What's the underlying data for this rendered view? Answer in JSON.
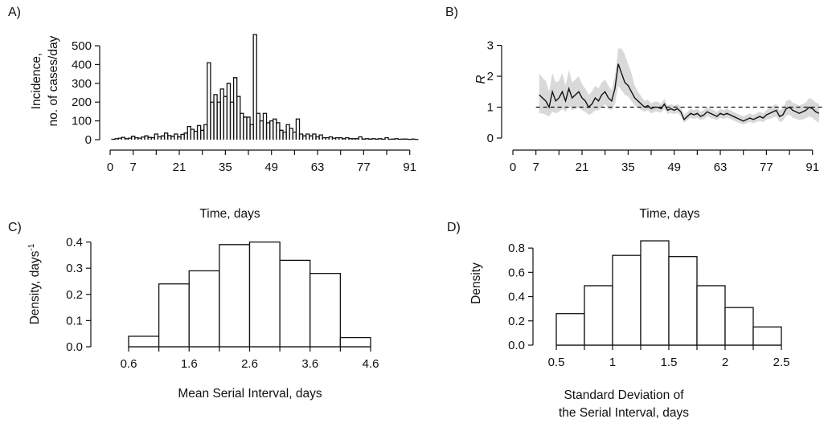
{
  "chart_data": [
    {
      "panel": "A)",
      "type": "bar",
      "xlabel": "Time, days",
      "ylabel_line1": "Incidence,",
      "ylabel_line2": "no. of cases/day",
      "xlim": [
        0,
        94
      ],
      "ylim": [
        0,
        560
      ],
      "xticks": [
        0,
        7,
        21,
        35,
        49,
        63,
        77,
        91
      ],
      "xminor": [
        14,
        28,
        42,
        56,
        70,
        84
      ],
      "yticks": [
        0,
        100,
        200,
        300,
        400,
        500
      ],
      "x": [
        1,
        2,
        3,
        4,
        5,
        6,
        7,
        8,
        9,
        10,
        11,
        12,
        13,
        14,
        15,
        16,
        17,
        18,
        19,
        20,
        21,
        22,
        23,
        24,
        25,
        26,
        27,
        28,
        29,
        30,
        31,
        32,
        33,
        34,
        35,
        36,
        37,
        38,
        39,
        40,
        41,
        42,
        43,
        44,
        45,
        46,
        47,
        48,
        49,
        50,
        51,
        52,
        53,
        54,
        55,
        56,
        57,
        58,
        59,
        60,
        61,
        62,
        63,
        64,
        65,
        66,
        67,
        68,
        69,
        70,
        71,
        72,
        73,
        74,
        75,
        76,
        77,
        78,
        79,
        80,
        81,
        82,
        83,
        84,
        85,
        86,
        87,
        88,
        89,
        90,
        91,
        92,
        93
      ],
      "values": [
        2,
        5,
        8,
        12,
        5,
        8,
        18,
        10,
        8,
        14,
        20,
        12,
        10,
        30,
        15,
        20,
        35,
        22,
        18,
        30,
        15,
        28,
        35,
        70,
        55,
        45,
        75,
        50,
        80,
        410,
        200,
        240,
        200,
        270,
        230,
        300,
        200,
        330,
        230,
        140,
        120,
        120,
        80,
        560,
        140,
        100,
        140,
        90,
        100,
        110,
        90,
        50,
        40,
        80,
        60,
        40,
        110,
        30,
        20,
        30,
        20,
        30,
        15,
        25,
        10,
        10,
        15,
        8,
        10,
        10,
        5,
        10,
        5,
        5,
        5,
        15,
        3,
        5,
        3,
        5,
        3,
        5,
        2,
        10,
        2,
        3,
        5,
        2,
        3,
        3,
        1,
        3,
        1
      ]
    },
    {
      "panel": "B)",
      "type": "line",
      "xlabel": "Time, days",
      "ylabel": "R",
      "xlim": [
        0,
        94
      ],
      "ylim": [
        0,
        3.3
      ],
      "xticks": [
        0,
        7,
        21,
        35,
        49,
        63,
        77,
        91
      ],
      "xminor": [
        14,
        28,
        42,
        56,
        70,
        84
      ],
      "yticks": [
        0,
        1,
        2,
        3
      ],
      "reference_line": 1,
      "x": [
        8,
        9,
        10,
        11,
        12,
        13,
        14,
        15,
        16,
        17,
        18,
        19,
        20,
        21,
        22,
        23,
        24,
        25,
        26,
        27,
        28,
        29,
        30,
        31,
        32,
        33,
        34,
        35,
        36,
        37,
        38,
        39,
        40,
        41,
        42,
        43,
        44,
        45,
        46,
        47,
        48,
        49,
        50,
        51,
        52,
        53,
        54,
        55,
        56,
        57,
        58,
        59,
        60,
        61,
        62,
        63,
        64,
        65,
        66,
        67,
        68,
        69,
        70,
        71,
        72,
        73,
        74,
        75,
        76,
        77,
        78,
        79,
        80,
        81,
        82,
        83,
        84,
        85,
        86,
        87,
        88,
        89,
        90,
        91,
        92,
        93
      ],
      "values": [
        1.4,
        1.3,
        1.2,
        1.0,
        1.5,
        1.2,
        1.3,
        1.5,
        1.2,
        1.6,
        1.3,
        1.4,
        1.5,
        1.3,
        1.2,
        1.0,
        1.1,
        1.3,
        1.2,
        1.4,
        1.5,
        1.3,
        1.2,
        1.6,
        2.4,
        2.1,
        1.8,
        1.7,
        1.5,
        1.3,
        1.2,
        1.1,
        1.0,
        1.05,
        0.95,
        1.0,
        1.0,
        0.95,
        1.1,
        0.9,
        0.95,
        0.9,
        0.95,
        0.85,
        0.6,
        0.7,
        0.8,
        0.75,
        0.8,
        0.7,
        0.75,
        0.85,
        0.8,
        0.75,
        0.7,
        0.8,
        0.75,
        0.8,
        0.75,
        0.7,
        0.65,
        0.6,
        0.55,
        0.6,
        0.65,
        0.6,
        0.65,
        0.7,
        0.65,
        0.75,
        0.8,
        0.85,
        0.9,
        0.7,
        0.75,
        0.95,
        1.0,
        0.9,
        0.85,
        0.8,
        0.85,
        0.9,
        1.0,
        0.95,
        0.85,
        0.8
      ],
      "ci_lower": [
        0.8,
        0.8,
        0.75,
        0.7,
        0.85,
        0.8,
        0.85,
        0.95,
        0.85,
        1.05,
        0.9,
        0.95,
        1.0,
        0.9,
        0.85,
        0.75,
        0.8,
        0.9,
        0.9,
        1.0,
        1.1,
        0.95,
        0.9,
        1.1,
        1.7,
        1.55,
        1.4,
        1.35,
        1.2,
        1.05,
        1.0,
        0.9,
        0.85,
        0.9,
        0.8,
        0.85,
        0.85,
        0.82,
        0.95,
        0.78,
        0.82,
        0.78,
        0.82,
        0.72,
        0.5,
        0.58,
        0.66,
        0.62,
        0.66,
        0.58,
        0.62,
        0.7,
        0.66,
        0.62,
        0.58,
        0.66,
        0.62,
        0.66,
        0.62,
        0.57,
        0.52,
        0.48,
        0.44,
        0.48,
        0.52,
        0.48,
        0.52,
        0.56,
        0.52,
        0.6,
        0.62,
        0.66,
        0.7,
        0.52,
        0.56,
        0.72,
        0.76,
        0.66,
        0.62,
        0.58,
        0.6,
        0.64,
        0.7,
        0.66,
        0.56,
        0.5
      ],
      "ci_upper": [
        2.1,
        1.95,
        1.85,
        1.5,
        2.1,
        1.8,
        1.85,
        2.1,
        1.7,
        2.2,
        1.8,
        1.9,
        2.0,
        1.75,
        1.6,
        1.4,
        1.5,
        1.7,
        1.6,
        1.8,
        1.9,
        1.7,
        1.55,
        2.0,
        2.9,
        2.9,
        2.7,
        2.4,
        2.1,
        1.7,
        1.5,
        1.35,
        1.2,
        1.25,
        1.12,
        1.18,
        1.18,
        1.1,
        1.28,
        1.05,
        1.1,
        1.05,
        1.1,
        1.0,
        0.75,
        0.85,
        0.95,
        0.9,
        0.95,
        0.85,
        0.9,
        1.0,
        0.95,
        0.9,
        0.85,
        0.95,
        0.9,
        0.95,
        0.9,
        0.85,
        0.8,
        0.75,
        0.7,
        0.75,
        0.8,
        0.75,
        0.8,
        0.85,
        0.8,
        0.9,
        1.0,
        1.05,
        1.1,
        0.9,
        0.95,
        1.2,
        1.25,
        1.15,
        1.1,
        1.05,
        1.1,
        1.15,
        1.3,
        1.25,
        1.15,
        1.1
      ]
    },
    {
      "panel": "C)",
      "type": "bar",
      "xlabel": "Mean Serial Interval, days",
      "ylabel": "Density, days",
      "ylabel_superscript": "-1",
      "xlim": [
        0.6,
        4.6
      ],
      "ylim": [
        0,
        0.42
      ],
      "xticks": [
        0.6,
        1.6,
        2.6,
        3.6,
        4.6
      ],
      "xminor": [
        1.1,
        2.1,
        3.1,
        4.1
      ],
      "yticks": [
        0.0,
        0.1,
        0.2,
        0.3,
        0.4
      ],
      "bin_edges": [
        0.6,
        1.1,
        1.6,
        2.1,
        2.6,
        3.1,
        3.6,
        4.1,
        4.6
      ],
      "values": [
        0.04,
        0.24,
        0.29,
        0.39,
        0.4,
        0.33,
        0.28,
        0.035
      ]
    },
    {
      "panel": "D)",
      "type": "bar",
      "xlabel_line1": "Standard Deviation of",
      "xlabel_line2": "the Serial Interval, days",
      "ylabel": "Density",
      "xlim": [
        0.5,
        2.5
      ],
      "ylim": [
        0,
        0.9
      ],
      "xticks": [
        0.5,
        1,
        1.5,
        2,
        2.5
      ],
      "xminor": [
        0.75,
        1.25,
        1.75,
        2.25
      ],
      "yticks": [
        0.0,
        0.2,
        0.4,
        0.6,
        0.8
      ],
      "bin_edges": [
        0.5,
        0.75,
        1.0,
        1.25,
        1.5,
        1.75,
        2.0,
        2.25,
        2.5
      ],
      "values": [
        0.26,
        0.49,
        0.74,
        0.86,
        0.73,
        0.49,
        0.31,
        0.15
      ]
    }
  ]
}
